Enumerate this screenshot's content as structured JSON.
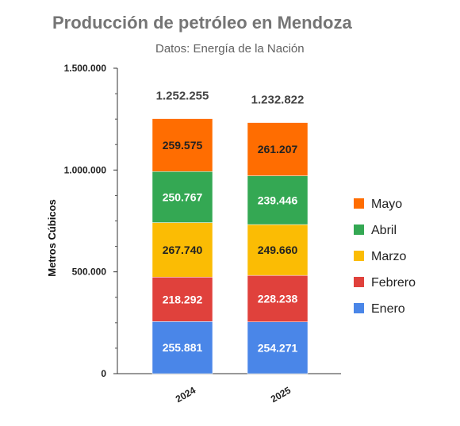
{
  "chart_data": {
    "type": "bar",
    "stacked": true,
    "title": "Producción de petróleo en Mendoza",
    "subtitle": "Datos: Energía de la Nación",
    "xlabel": "",
    "ylabel": "Metros Cúbicos",
    "ylim": [
      0,
      1500000
    ],
    "yticks": [
      "0",
      "500.000",
      "1.000.000",
      "1.500.000"
    ],
    "ytick_values": [
      0,
      500000,
      1000000,
      1500000
    ],
    "categories": [
      "2024",
      "2025"
    ],
    "totals": [
      "1.252.255",
      "1.232.822"
    ],
    "series": [
      {
        "name": "Enero",
        "color": "#4a86e8",
        "text_color": "#ffffff",
        "values": [
          255881,
          254271
        ],
        "labels": [
          "255.881",
          "254.271"
        ]
      },
      {
        "name": "Febrero",
        "color": "#e0413c",
        "text_color": "#ffffff",
        "values": [
          218292,
          228238
        ],
        "labels": [
          "218.292",
          "228.238"
        ]
      },
      {
        "name": "Marzo",
        "color": "#fbbc04",
        "text_color": "#222222",
        "values": [
          267740,
          249660
        ],
        "labels": [
          "267.740",
          "249.660"
        ]
      },
      {
        "name": "Abril",
        "color": "#34a853",
        "text_color": "#ffffff",
        "values": [
          250767,
          239446
        ],
        "labels": [
          "250.767",
          "239.446"
        ]
      },
      {
        "name": "Mayo",
        "color": "#ff6d01",
        "text_color": "#222222",
        "values": [
          259575,
          261207
        ],
        "labels": [
          "259.575",
          "261.207"
        ]
      }
    ],
    "legend_position": "right",
    "legend_order": [
      "Mayo",
      "Abril",
      "Marzo",
      "Febrero",
      "Enero"
    ],
    "grid": false
  }
}
